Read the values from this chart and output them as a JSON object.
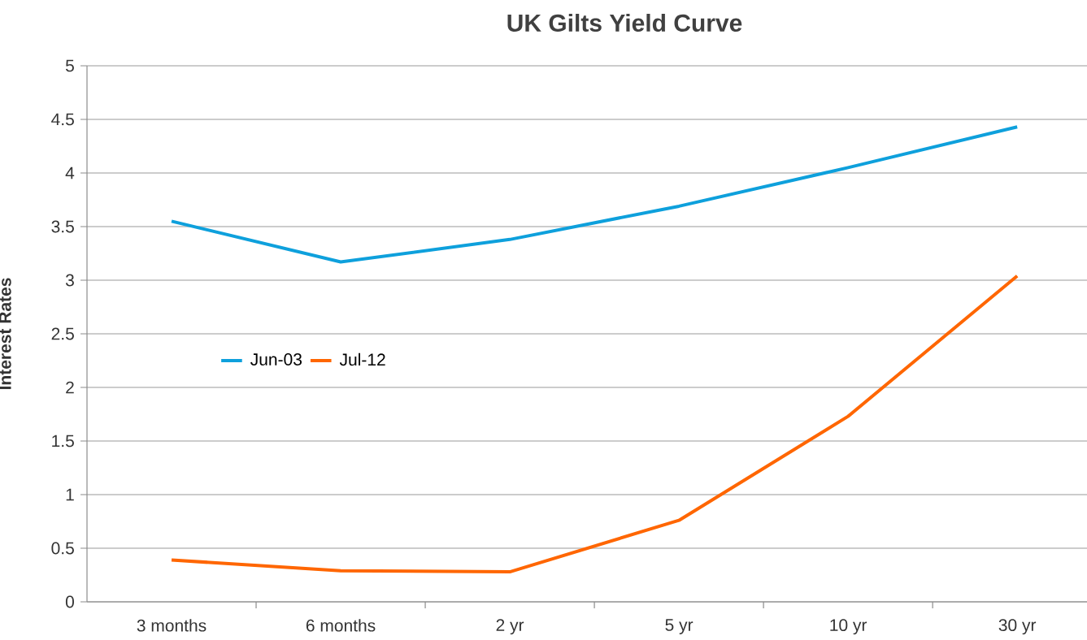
{
  "chart_data": {
    "type": "line",
    "title": "UK Gilts Yield Curve",
    "ylabel": "Interest Rates",
    "categories": [
      "3 months",
      "6 months",
      "2 yr",
      "5 yr",
      "10  yr",
      "30 yr"
    ],
    "series": [
      {
        "name": "Jun-03",
        "color": "#0ea0dc",
        "values": [
          3.55,
          3.17,
          3.38,
          3.69,
          4.05,
          4.43
        ]
      },
      {
        "name": "Jul-12",
        "color": "#ff6600",
        "values": [
          0.39,
          0.29,
          0.28,
          0.76,
          1.73,
          3.04
        ]
      }
    ],
    "ylim": [
      0,
      5
    ],
    "yticks": [
      0,
      0.5,
      1,
      1.5,
      2,
      2.5,
      3,
      3.5,
      4,
      4.5,
      5
    ],
    "grid": "y",
    "legend": "left",
    "marker": "none",
    "line_style": "solid"
  }
}
